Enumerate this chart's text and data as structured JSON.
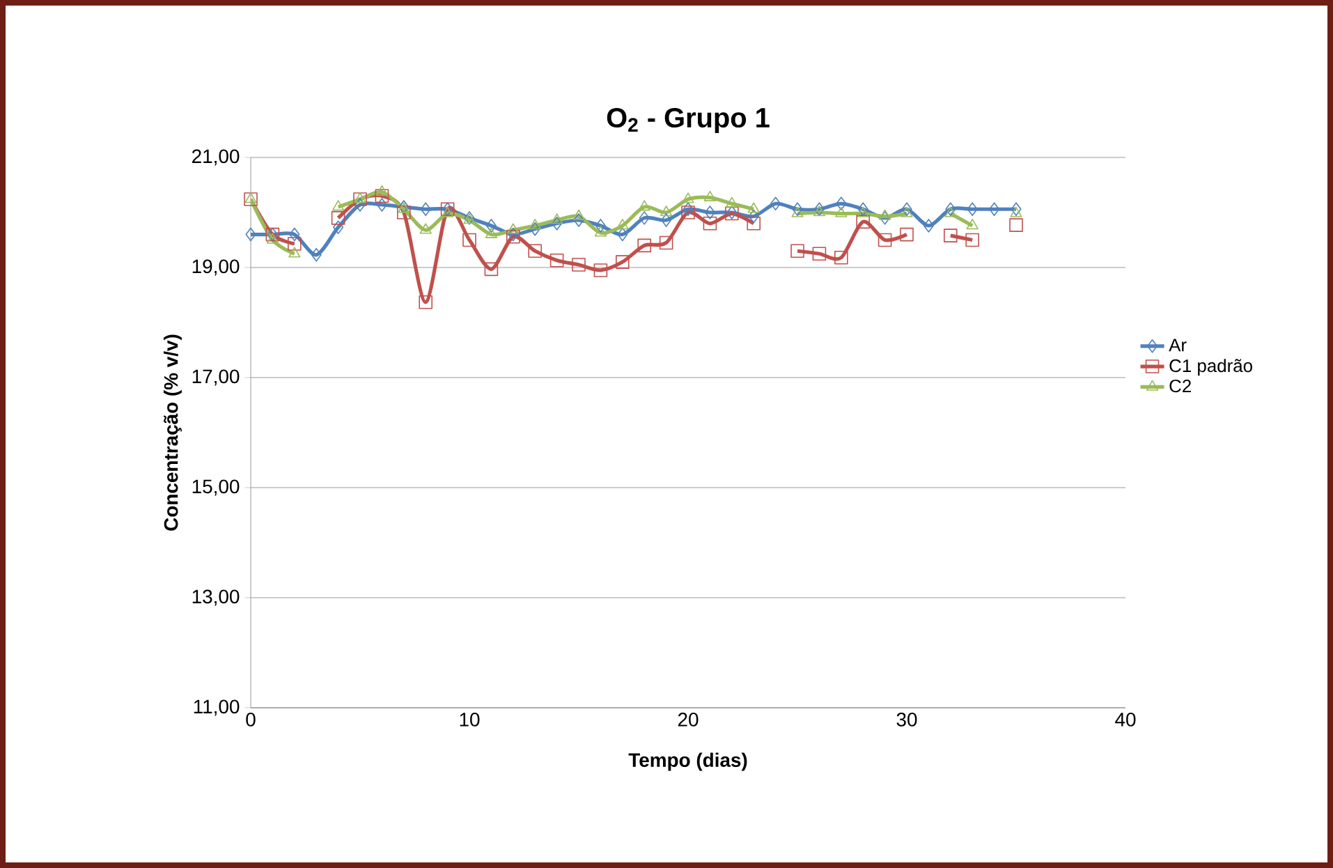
{
  "chart_data": {
    "type": "line",
    "title": "O$_{2}$ - Grupo 1",
    "xlabel": "Tempo (dias)",
    "ylabel": "Concentração (% v/v)",
    "x": [
      0,
      1,
      2,
      3,
      4,
      5,
      6,
      7,
      8,
      9,
      10,
      11,
      12,
      13,
      14,
      15,
      16,
      17,
      18,
      19,
      20,
      21,
      22,
      23,
      24,
      25,
      26,
      27,
      28,
      29,
      30,
      31,
      32,
      33,
      34,
      35
    ],
    "series": [
      {
        "name": "Ar",
        "color": "#4f81bd",
        "marker": "diamond",
        "values": [
          19.6,
          19.6,
          19.6,
          19.23,
          19.73,
          20.14,
          20.14,
          20.1,
          20.06,
          20.06,
          19.9,
          19.76,
          19.6,
          19.7,
          19.8,
          19.86,
          19.76,
          19.6,
          19.9,
          19.86,
          20.06,
          20.0,
          20.0,
          19.93,
          20.16,
          20.06,
          20.06,
          20.16,
          20.06,
          19.9,
          20.06,
          19.76,
          20.06,
          20.06,
          20.06,
          20.06
        ]
      },
      {
        "name": "C1 padrão",
        "color": "#c0504d",
        "marker": "square",
        "values": [
          20.24,
          19.6,
          19.43,
          null,
          19.9,
          20.24,
          20.3,
          20.0,
          18.37,
          20.06,
          19.5,
          18.97,
          19.56,
          19.3,
          19.13,
          19.05,
          18.95,
          19.1,
          19.4,
          19.45,
          20.0,
          19.8,
          19.98,
          19.8,
          null,
          19.3,
          19.25,
          19.18,
          19.83,
          19.5,
          19.6,
          null,
          19.58,
          19.5,
          null,
          19.77
        ]
      },
      {
        "name": "C2",
        "color": "#9bbb59",
        "marker": "triangle",
        "values": [
          20.24,
          19.5,
          19.25,
          null,
          20.1,
          20.24,
          20.37,
          20.06,
          19.68,
          19.98,
          19.86,
          19.6,
          19.68,
          19.76,
          19.86,
          19.93,
          19.63,
          19.76,
          20.1,
          20.0,
          20.24,
          20.27,
          20.16,
          20.06,
          null,
          19.98,
          20.0,
          19.98,
          19.98,
          19.93,
          19.98,
          null,
          19.98,
          19.76,
          null,
          19.98
        ]
      }
    ],
    "xlim": [
      0,
      40
    ],
    "xticks": [
      0,
      10,
      20,
      30,
      40
    ],
    "ylim": [
      11,
      21
    ],
    "yticks": [
      {
        "value": 11,
        "label": "11,00"
      },
      {
        "value": 13,
        "label": "13,00"
      },
      {
        "value": 15,
        "label": "15,00"
      },
      {
        "value": 17,
        "label": "17,00"
      },
      {
        "value": 19,
        "label": "19,00"
      },
      {
        "value": 21,
        "label": "21,00"
      }
    ],
    "grid": "y",
    "legend": "right",
    "line_style": "solid"
  }
}
